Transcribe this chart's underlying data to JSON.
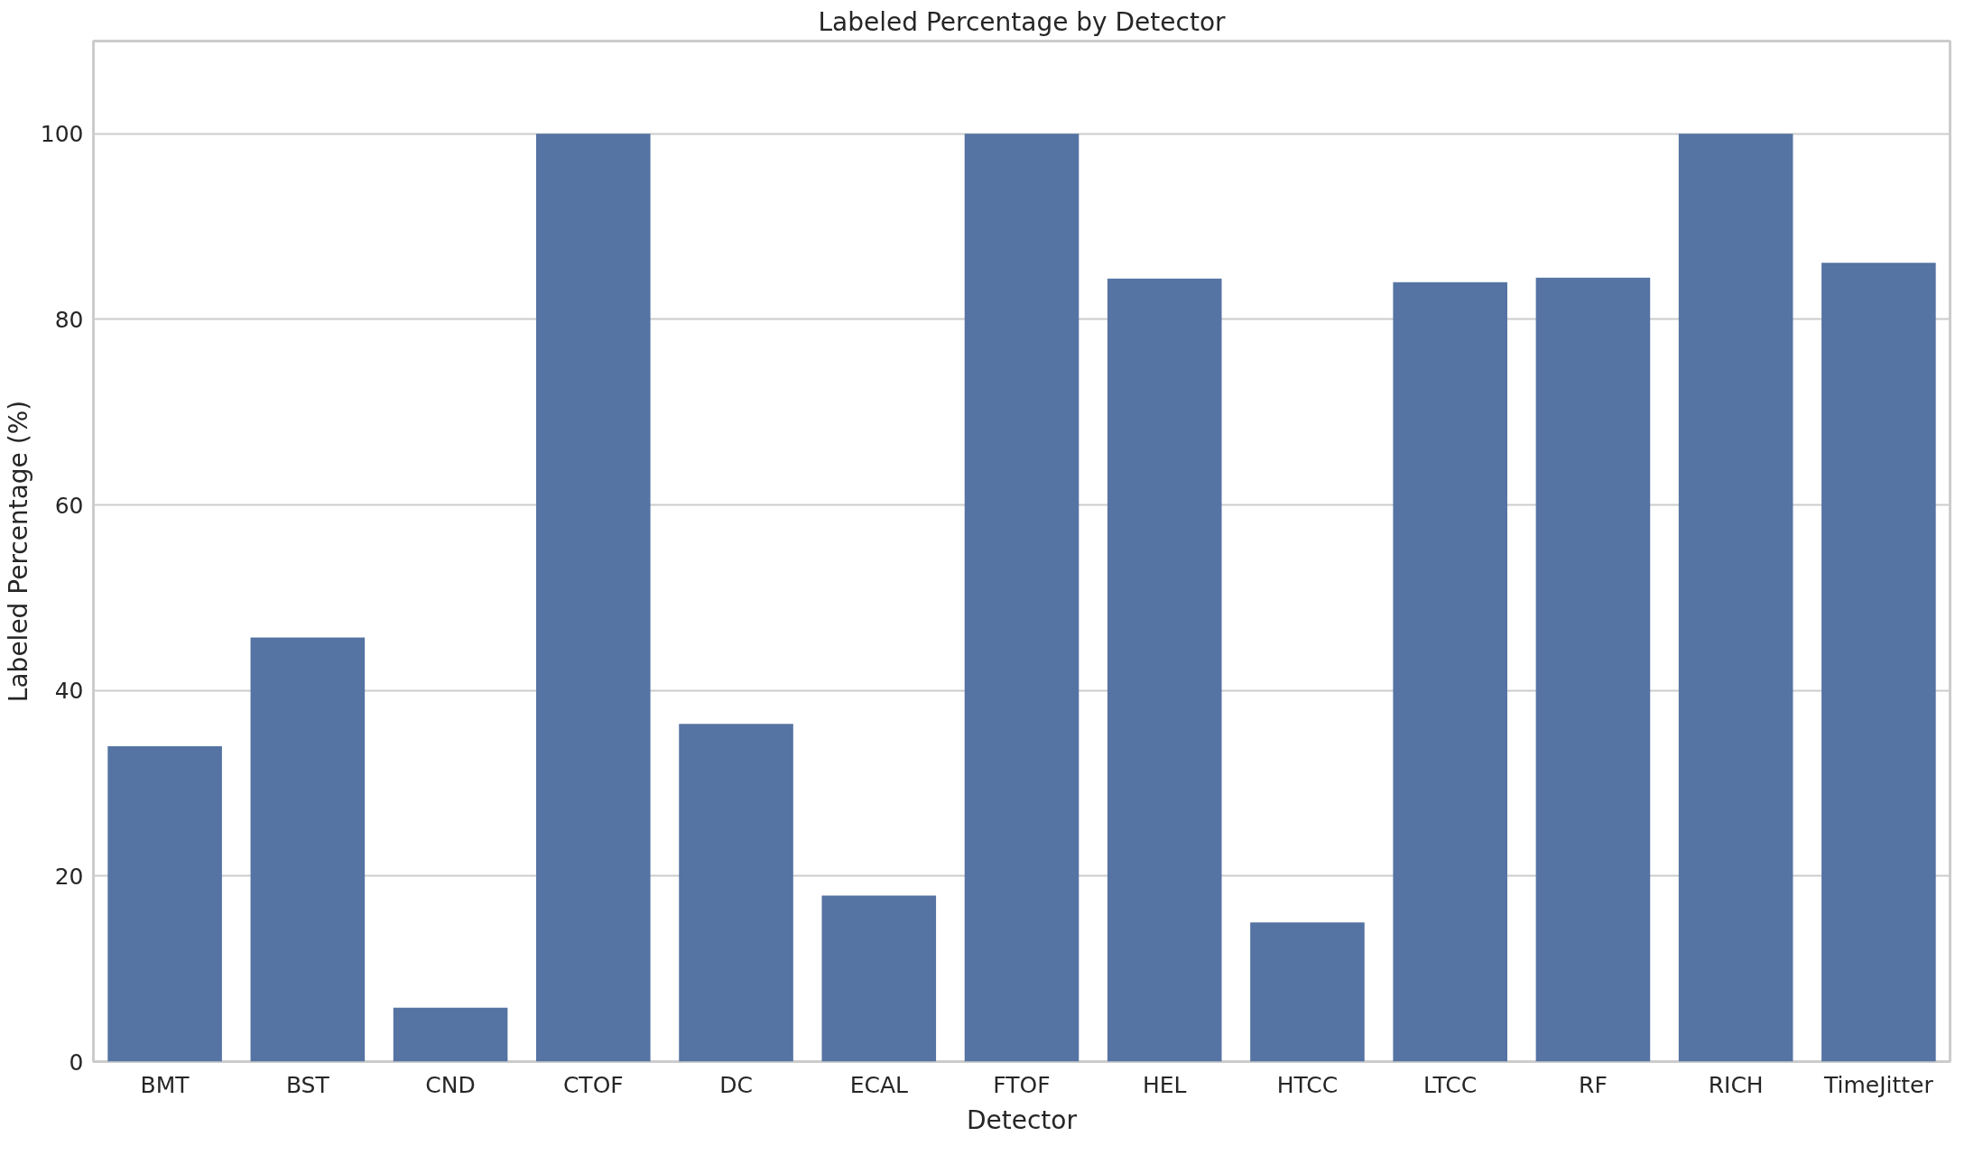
{
  "chart_data": {
    "type": "bar",
    "title": "Labeled Percentage by Detector",
    "xlabel": "Detector",
    "ylabel": "Labeled Percentage (%)",
    "categories": [
      "BMT",
      "BST",
      "CND",
      "CTOF",
      "DC",
      "ECAL",
      "FTOF",
      "HEL",
      "HTCC",
      "LTCC",
      "RF",
      "RICH",
      "TimeJitter"
    ],
    "values": [
      34,
      45.7,
      5.8,
      100,
      36.4,
      17.9,
      100,
      84.4,
      15,
      84,
      84.5,
      100,
      86.1
    ],
    "color": "#5573a3",
    "ylim": [
      0,
      110
    ],
    "yticks": [
      0,
      20,
      40,
      60,
      80,
      100
    ],
    "grid": "y"
  }
}
